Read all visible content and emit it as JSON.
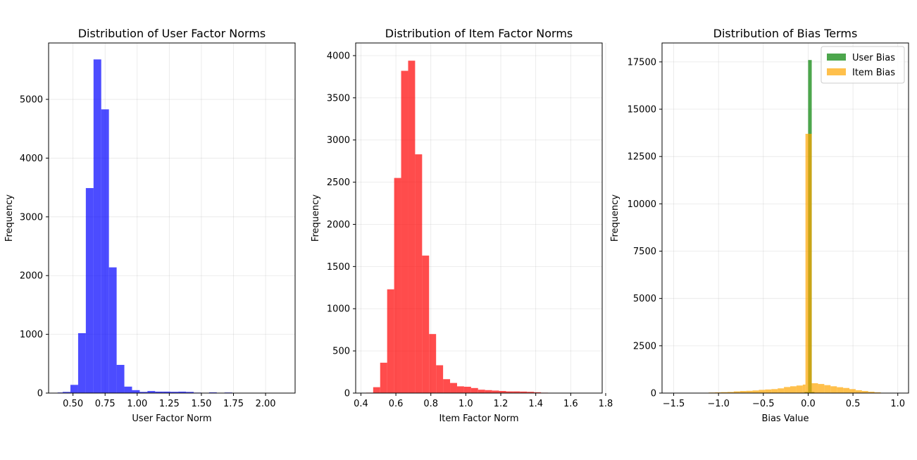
{
  "chart_data": [
    {
      "type": "bar",
      "title": "Distribution of User Factor Norms",
      "xlabel": "User Factor Norm",
      "ylabel": "Frequency",
      "xlim": [
        0.31,
        2.23
      ],
      "ylim": [
        0,
        5960
      ],
      "xticks": [
        0.5,
        0.75,
        1.0,
        1.25,
        1.5,
        1.75,
        2.0
      ],
      "xtick_labels": [
        "0.50",
        "0.75",
        "1.00",
        "1.25",
        "1.50",
        "1.75",
        "2.00"
      ],
      "yticks": [
        0,
        1000,
        2000,
        3000,
        4000,
        5000
      ],
      "ytick_labels": [
        "0",
        "1000",
        "2000",
        "3000",
        "4000",
        "5000"
      ],
      "grid": true,
      "series": [
        {
          "color": "#0000ff",
          "bins": [
            [
              0.38,
              0.42,
              10
            ],
            [
              0.42,
              0.48,
              20
            ],
            [
              0.48,
              0.54,
              140
            ],
            [
              0.54,
              0.6,
              1020
            ],
            [
              0.6,
              0.66,
              3490
            ],
            [
              0.66,
              0.72,
              5680
            ],
            [
              0.72,
              0.78,
              4830
            ],
            [
              0.78,
              0.84,
              2140
            ],
            [
              0.84,
              0.9,
              480
            ],
            [
              0.9,
              0.96,
              110
            ],
            [
              0.96,
              1.02,
              50
            ],
            [
              1.02,
              1.08,
              20
            ],
            [
              1.08,
              1.14,
              35
            ],
            [
              1.14,
              1.2,
              25
            ],
            [
              1.2,
              1.26,
              25
            ],
            [
              1.26,
              1.32,
              22
            ],
            [
              1.32,
              1.38,
              25
            ],
            [
              1.38,
              1.44,
              20
            ],
            [
              1.44,
              1.5,
              8
            ],
            [
              1.5,
              1.56,
              5
            ],
            [
              1.56,
              1.62,
              12
            ],
            [
              1.62,
              1.68,
              3
            ],
            [
              1.68,
              1.74,
              10
            ],
            [
              1.74,
              1.8,
              2
            ],
            [
              1.8,
              1.86,
              2
            ],
            [
              1.86,
              1.92,
              3
            ],
            [
              1.92,
              1.98,
              1
            ],
            [
              1.98,
              2.04,
              1
            ],
            [
              2.04,
              2.1,
              1
            ],
            [
              2.1,
              2.15,
              1
            ]
          ]
        }
      ]
    },
    {
      "type": "bar",
      "title": "Distribution of Item Factor Norms",
      "xlabel": "Item Factor Norm",
      "ylabel": "Frequency",
      "xlim": [
        0.37,
        1.78
      ],
      "ylim": [
        0,
        4150
      ],
      "xticks": [
        0.4,
        0.6,
        0.8,
        1.0,
        1.2,
        1.4,
        1.6,
        1.8
      ],
      "xtick_labels": [
        "0.4",
        "0.6",
        "0.8",
        "1.0",
        "1.2",
        "1.4",
        "1.6",
        "1.8"
      ],
      "yticks": [
        0,
        500,
        1000,
        1500,
        2000,
        2500,
        3000,
        3500,
        4000
      ],
      "ytick_labels": [
        "0",
        "500",
        "1000",
        "1500",
        "2000",
        "2500",
        "3000",
        "3500",
        "4000"
      ],
      "grid": true,
      "series": [
        {
          "color": "#ff0000",
          "bins": [
            [
              0.43,
              0.47,
              5
            ],
            [
              0.47,
              0.51,
              70
            ],
            [
              0.51,
              0.55,
              360
            ],
            [
              0.55,
              0.59,
              1230
            ],
            [
              0.59,
              0.63,
              2550
            ],
            [
              0.63,
              0.67,
              3820
            ],
            [
              0.67,
              0.71,
              3940
            ],
            [
              0.71,
              0.75,
              2830
            ],
            [
              0.75,
              0.79,
              1630
            ],
            [
              0.79,
              0.83,
              700
            ],
            [
              0.83,
              0.87,
              330
            ],
            [
              0.87,
              0.91,
              165
            ],
            [
              0.91,
              0.95,
              120
            ],
            [
              0.95,
              0.99,
              80
            ],
            [
              0.99,
              1.03,
              75
            ],
            [
              1.03,
              1.07,
              60
            ],
            [
              1.07,
              1.11,
              40
            ],
            [
              1.11,
              1.15,
              35
            ],
            [
              1.15,
              1.19,
              30
            ],
            [
              1.19,
              1.23,
              25
            ],
            [
              1.23,
              1.27,
              20
            ],
            [
              1.27,
              1.31,
              20
            ],
            [
              1.31,
              1.35,
              18
            ],
            [
              1.35,
              1.39,
              15
            ],
            [
              1.39,
              1.43,
              10
            ],
            [
              1.43,
              1.47,
              5
            ],
            [
              1.47,
              1.51,
              4
            ],
            [
              1.51,
              1.55,
              3
            ],
            [
              1.55,
              1.59,
              2
            ],
            [
              1.59,
              1.63,
              2
            ],
            [
              1.63,
              1.67,
              1
            ],
            [
              1.67,
              1.71,
              1
            ]
          ]
        }
      ]
    },
    {
      "type": "bar",
      "title": "Distribution of Bias Terms",
      "xlabel": "Bias Value",
      "ylabel": "Frequency",
      "xlim": [
        -1.63,
        1.12
      ],
      "ylim": [
        0,
        18500
      ],
      "xticks": [
        -1.5,
        -1.0,
        -0.5,
        0.0,
        0.5,
        1.0
      ],
      "xtick_labels": [
        "−1.5",
        "−1.0",
        "−0.5",
        "0.0",
        "0.5",
        "1.0"
      ],
      "yticks": [
        0,
        2500,
        5000,
        7500,
        10000,
        12500,
        15000,
        17500
      ],
      "ytick_labels": [
        "0",
        "2500",
        "5000",
        "7500",
        "10000",
        "12500",
        "15000",
        "17500"
      ],
      "grid": true,
      "legend_position": "top-right",
      "series": [
        {
          "name": "User Bias",
          "color": "#008000",
          "bins": [
            [
              -0.04,
              0.0,
              60
            ],
            [
              0.0,
              0.04,
              17600
            ],
            [
              0.04,
              0.07,
              60
            ]
          ]
        },
        {
          "name": "Item Bias",
          "color": "#ffa500",
          "bins": [
            [
              -1.53,
              -1.46,
              4
            ],
            [
              -1.46,
              -1.39,
              5
            ],
            [
              -1.39,
              -1.32,
              6
            ],
            [
              -1.32,
              -1.25,
              8
            ],
            [
              -1.25,
              -1.18,
              12
            ],
            [
              -1.18,
              -1.11,
              18
            ],
            [
              -1.11,
              -1.04,
              30
            ],
            [
              -1.04,
              -0.97,
              40
            ],
            [
              -0.97,
              -0.9,
              50
            ],
            [
              -0.9,
              -0.83,
              60
            ],
            [
              -0.83,
              -0.76,
              90
            ],
            [
              -0.76,
              -0.69,
              110
            ],
            [
              -0.69,
              -0.62,
              120
            ],
            [
              -0.62,
              -0.55,
              140
            ],
            [
              -0.55,
              -0.48,
              170
            ],
            [
              -0.48,
              -0.41,
              190
            ],
            [
              -0.41,
              -0.34,
              210
            ],
            [
              -0.34,
              -0.27,
              250
            ],
            [
              -0.27,
              -0.2,
              320
            ],
            [
              -0.2,
              -0.13,
              360
            ],
            [
              -0.13,
              -0.06,
              400
            ],
            [
              -0.06,
              -0.03,
              450
            ],
            [
              -0.03,
              0.04,
              13700
            ],
            [
              0.04,
              0.11,
              520
            ],
            [
              0.11,
              0.18,
              480
            ],
            [
              0.18,
              0.25,
              420
            ],
            [
              0.25,
              0.32,
              360
            ],
            [
              0.32,
              0.39,
              310
            ],
            [
              0.39,
              0.46,
              270
            ],
            [
              0.46,
              0.53,
              210
            ],
            [
              0.53,
              0.6,
              150
            ],
            [
              0.6,
              0.67,
              110
            ],
            [
              0.67,
              0.74,
              70
            ],
            [
              0.74,
              0.81,
              40
            ],
            [
              0.81,
              0.88,
              15
            ],
            [
              0.88,
              0.95,
              8
            ]
          ]
        }
      ]
    }
  ]
}
